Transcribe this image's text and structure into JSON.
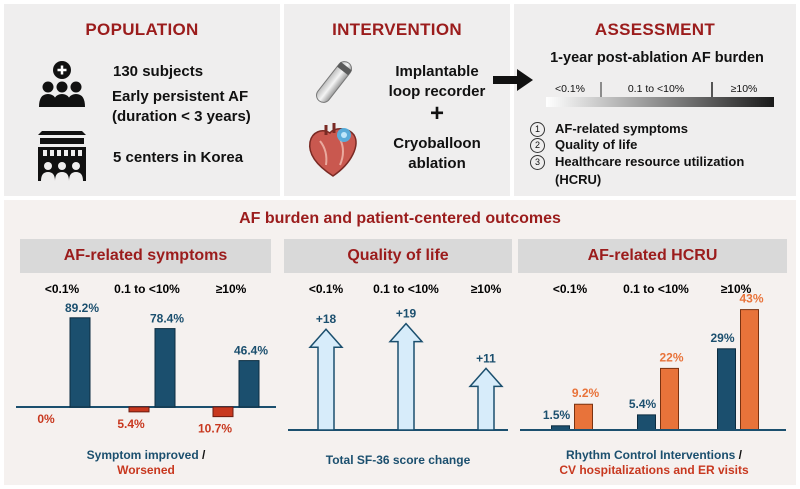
{
  "population": {
    "title": "POPULATION",
    "subjects": "130 subjects",
    "af_line1": "Early persistent AF",
    "af_line2": "(duration < 3 years)",
    "centers": "5 centers in Korea",
    "icons": [
      "people-plus-icon",
      "hospital-building-icon"
    ]
  },
  "intervention": {
    "title": "INTERVENTION",
    "ilr_line1": "Implantable",
    "ilr_line2": "loop recorder",
    "plus": "+",
    "cryo_line1": "Cryoballoon",
    "cryo_line2": "ablation",
    "icons": [
      "loop-recorder-icon",
      "heart-balloon-icon"
    ]
  },
  "assessment": {
    "title": "ASSESSMENT",
    "burden_title": "1-year post-ablation AF burden",
    "bins": [
      "<0.1%",
      "0.1 to <10%",
      "≥10%"
    ],
    "outcomes": [
      {
        "num": "①",
        "label": "AF-related symptoms"
      },
      {
        "num": "②",
        "label": "Quality of life"
      },
      {
        "num": "③",
        "label": "Healthcare resource utilization"
      }
    ],
    "outcome3_cont": "(HCRU)"
  },
  "bottom": {
    "title": "AF burden and patient-centered outcomes"
  },
  "colors": {
    "title_red": "#9b1c1c",
    "navy": "#1b4f6e",
    "red": "#c8381f",
    "orange": "#e8733a",
    "light_blue": "#d7ecfa",
    "panel_bg": "#efeeee",
    "header_bg": "#d9d9d9"
  },
  "chart_data": [
    {
      "type": "bar",
      "title": "AF-related symptoms",
      "categories": [
        "<0.1%",
        "0.1 to <10%",
        "≥10%"
      ],
      "series": [
        {
          "name": "Symptom improved",
          "values": [
            89.2,
            78.4,
            46.4
          ],
          "labels": [
            "89.2%",
            "78.4%",
            "46.4%"
          ]
        },
        {
          "name": "Worsened",
          "values": [
            0,
            5.4,
            10.7
          ],
          "labels": [
            "0%",
            "5.4%",
            "10.7%"
          ]
        }
      ],
      "caption_a": "Symptom improved",
      "caption_sep": " /",
      "caption_b": "Worsened"
    },
    {
      "type": "bar",
      "title": "Quality of life",
      "categories": [
        "<0.1%",
        "0.1 to <10%",
        "≥10%"
      ],
      "series": [
        {
          "name": "Total SF-36 score change",
          "values": [
            18,
            19,
            11
          ],
          "labels": [
            "+18",
            "+19",
            "+11"
          ]
        }
      ],
      "caption": "Total SF-36 score change"
    },
    {
      "type": "bar",
      "title": "AF-related HCRU",
      "categories": [
        "<0.1%",
        "0.1 to <10%",
        "≥10%"
      ],
      "series": [
        {
          "name": "Rhythm Control Interventions",
          "values": [
            1.5,
            5.4,
            29
          ],
          "labels": [
            "1.5%",
            "5.4%",
            "29%"
          ]
        },
        {
          "name": "CV hospitalizations and ER visits",
          "values": [
            9.2,
            22,
            43
          ],
          "labels": [
            "9.2%",
            "22%",
            "43%"
          ]
        }
      ],
      "caption_a": "Rhythm Control Interventions",
      "caption_sep": " /",
      "caption_b": "CV hospitalizations and ER visits"
    }
  ]
}
